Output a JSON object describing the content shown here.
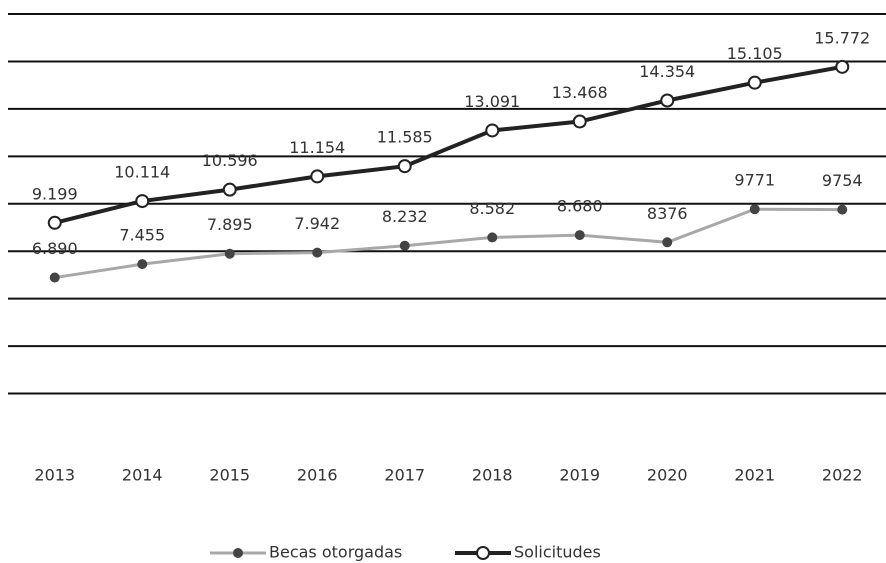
{
  "chart_data": {
    "type": "line",
    "categories": [
      "2013",
      "2014",
      "2015",
      "2016",
      "2017",
      "2018",
      "2019",
      "2020",
      "2021",
      "2022"
    ],
    "series": [
      {
        "name": "Becas otorgadas",
        "color": "#a8a8a8",
        "marker_color": "#444444",
        "values": [
          6890,
          7455,
          7895,
          7942,
          8232,
          8582,
          8680,
          8376,
          9771,
          9754
        ],
        "value_labels": [
          "6.890",
          "7.455",
          "7.895",
          "7.942",
          "8.232",
          "8.582",
          "8.680",
          "8376",
          "9771",
          "9754"
        ]
      },
      {
        "name": "Solicitudes",
        "color": "#222222",
        "marker_color": "#ffffff",
        "values": [
          9199,
          10114,
          10596,
          11154,
          11585,
          13091,
          13468,
          14354,
          15105,
          15772
        ],
        "value_labels": [
          "9.199",
          "10.114",
          "10.596",
          "11.154",
          "11.585",
          "13.091",
          "13.468",
          "14.354",
          "15.105",
          "15.772"
        ]
      }
    ],
    "ylim": [
      0,
      18000
    ],
    "yticks": [
      2000,
      4000,
      6000,
      8000,
      10000,
      12000,
      14000,
      16000,
      18000
    ],
    "grid": true,
    "legend": "bottom"
  }
}
